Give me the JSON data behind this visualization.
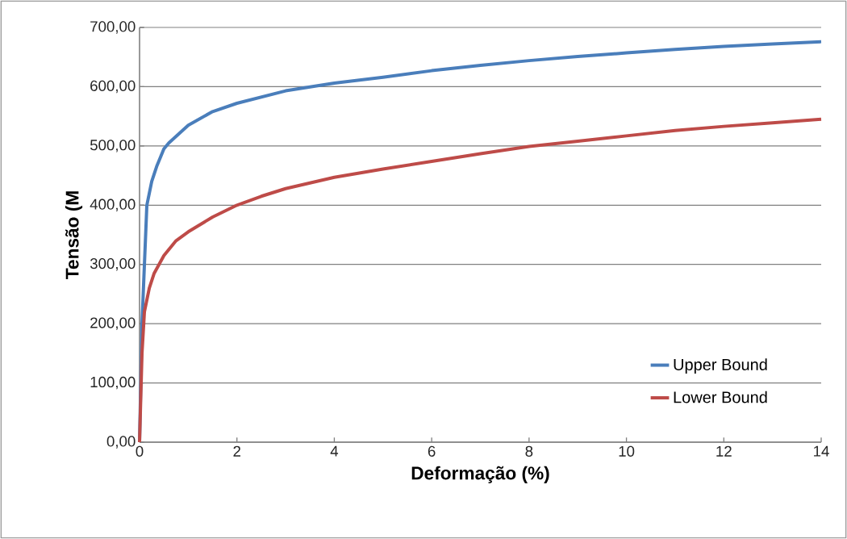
{
  "chart_data": {
    "type": "line",
    "xlabel": "Deformação (%)",
    "ylabel": "Tensão (M",
    "xlim": [
      0,
      14
    ],
    "xticks": [
      0,
      2,
      4,
      6,
      8,
      10,
      12,
      14
    ],
    "ylim": [
      0,
      700
    ],
    "yticks": [
      {
        "value": 0,
        "label": "0,00"
      },
      {
        "value": 100,
        "label": "100,00"
      },
      {
        "value": 200,
        "label": "200,00"
      },
      {
        "value": 300,
        "label": "300,00"
      },
      {
        "value": 400,
        "label": "400,00"
      },
      {
        "value": 500,
        "label": "500,00"
      },
      {
        "value": 600,
        "label": "600,00"
      },
      {
        "value": 700,
        "label": "700,00"
      }
    ],
    "grid": "y",
    "legend": "bottom right",
    "marker": "none",
    "line_style": "solid",
    "series": [
      {
        "name": "Upper Bound",
        "color": "#4a7ebb",
        "x": [
          0,
          0.05,
          0.1,
          0.15,
          0.25,
          0.35,
          0.5,
          0.6,
          1,
          1.5,
          2,
          3,
          4,
          5,
          6,
          7,
          8,
          9,
          10,
          11,
          12,
          13,
          14
        ],
        "values": [
          0,
          200,
          300,
          400,
          440,
          465,
          495,
          505,
          535,
          558,
          572,
          593,
          606,
          616,
          627,
          636,
          644,
          651,
          657,
          663,
          668,
          672,
          676
        ]
      },
      {
        "name": "Lower Bound",
        "color": "#be4b48",
        "x": [
          0,
          0.05,
          0.1,
          0.2,
          0.3,
          0.5,
          0.75,
          1,
          1.5,
          2,
          2.5,
          3,
          4,
          5,
          6,
          7,
          8,
          9,
          10,
          11,
          12,
          13,
          14
        ],
        "values": [
          0,
          150,
          220,
          260,
          285,
          315,
          340,
          355,
          380,
          400,
          415,
          428,
          447,
          461,
          474,
          487,
          499,
          508,
          517,
          526,
          533,
          539,
          545
        ]
      }
    ]
  }
}
